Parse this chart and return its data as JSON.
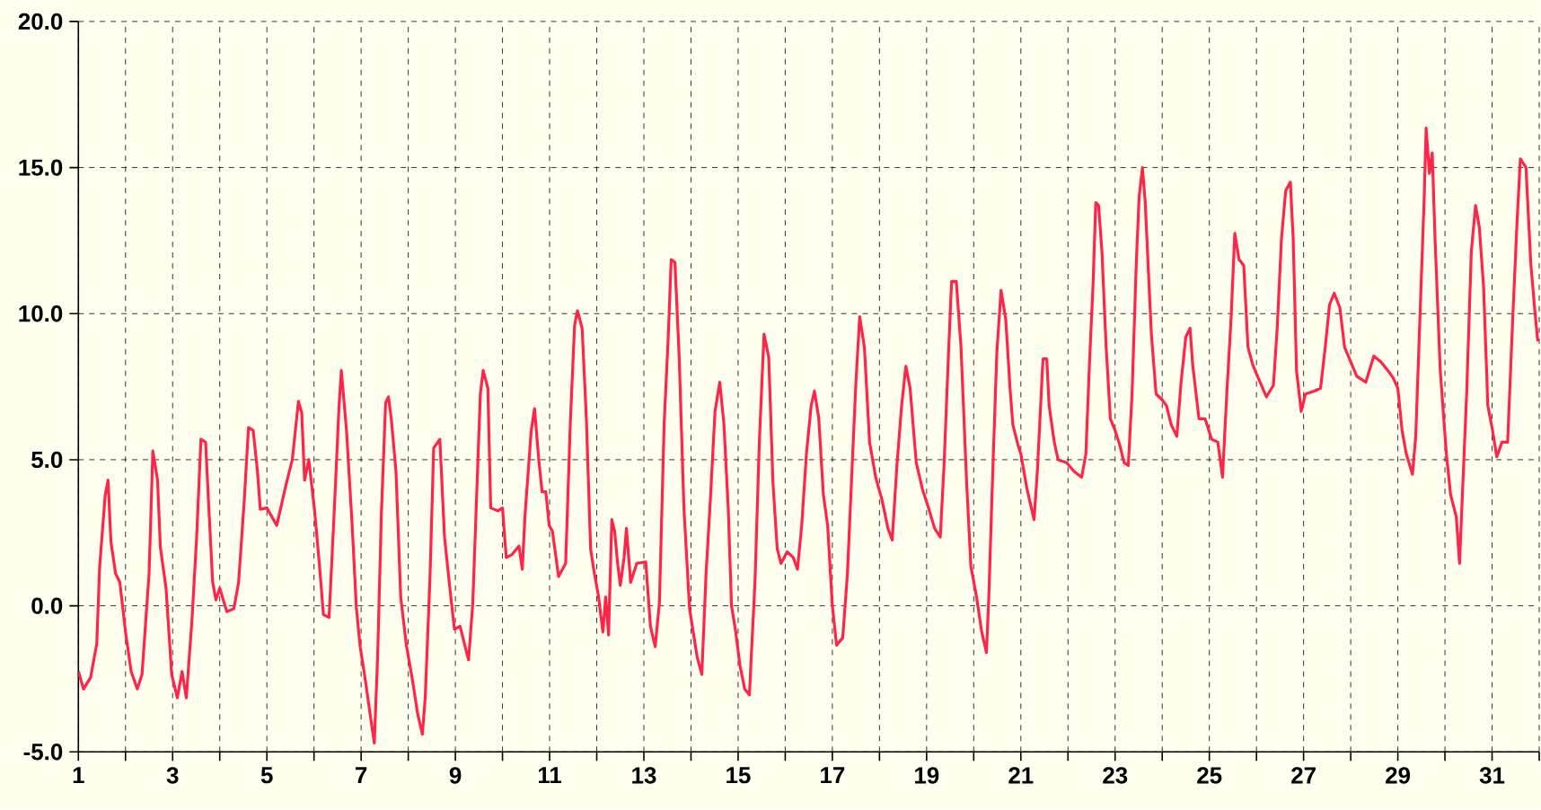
{
  "chart_data": {
    "type": "line",
    "xlim": [
      1,
      32
    ],
    "ylim": [
      -5,
      20
    ],
    "xticks": [
      1,
      {
        "value": 2,
        "label": null
      },
      3,
      {
        "value": 4,
        "label": null
      },
      5,
      {
        "value": 6,
        "label": null
      },
      7,
      {
        "value": 8,
        "label": null
      },
      9,
      {
        "value": 10,
        "label": null
      },
      11,
      {
        "value": 12,
        "label": null
      },
      13,
      {
        "value": 14,
        "label": null
      },
      15,
      {
        "value": 16,
        "label": null
      },
      17,
      {
        "value": 18,
        "label": null
      },
      19,
      {
        "value": 20,
        "label": null
      },
      21,
      {
        "value": 22,
        "label": null
      },
      23,
      {
        "value": 24,
        "label": null
      },
      25,
      {
        "value": 26,
        "label": null
      },
      27,
      {
        "value": 28,
        "label": null
      },
      29,
      {
        "value": 30,
        "label": null
      },
      31,
      {
        "value": 32,
        "label": null
      }
    ],
    "yticks": [
      {
        "value": -5,
        "label": "-5.0"
      },
      {
        "value": 0,
        "label": "0.0"
      },
      {
        "value": 5,
        "label": "5.0"
      },
      {
        "value": 10,
        "label": "10.0"
      },
      {
        "value": 15,
        "label": "15.0"
      },
      {
        "value": 20,
        "label": "20.0"
      }
    ],
    "grid": true,
    "line_style": "solid",
    "series": [
      {
        "color": "#ff2448",
        "x": [
          1.0,
          1.11,
          1.26,
          1.39,
          1.45,
          1.57,
          1.63,
          1.69,
          1.79,
          1.88,
          2.0,
          2.12,
          2.25,
          2.35,
          2.5,
          2.58,
          2.68,
          2.74,
          2.86,
          2.98,
          3.1,
          3.2,
          3.29,
          3.41,
          3.51,
          3.6,
          3.7,
          3.76,
          3.85,
          3.92,
          4.0,
          4.15,
          4.3,
          4.4,
          4.52,
          4.61,
          4.71,
          4.8,
          4.86,
          5.0,
          5.21,
          5.4,
          5.54,
          5.67,
          5.74,
          5.8,
          5.89,
          6.01,
          6.11,
          6.2,
          6.32,
          6.44,
          6.53,
          6.58,
          6.69,
          6.81,
          6.9,
          6.98,
          7.09,
          7.19,
          7.28,
          7.35,
          7.43,
          7.52,
          7.58,
          7.64,
          7.74,
          7.84,
          7.96,
          8.09,
          8.2,
          8.3,
          8.36,
          8.46,
          8.54,
          8.67,
          8.77,
          8.89,
          8.98,
          9.1,
          9.2,
          9.28,
          9.37,
          9.44,
          9.53,
          9.59,
          9.69,
          9.75,
          9.9,
          10.0,
          10.08,
          10.2,
          10.35,
          10.42,
          10.48,
          10.61,
          10.68,
          10.77,
          10.84,
          10.92,
          10.99,
          11.06,
          11.19,
          11.34,
          11.44,
          11.53,
          11.59,
          11.69,
          11.78,
          11.87,
          11.95,
          12.04,
          12.13,
          12.19,
          12.25,
          12.32,
          12.38,
          12.44,
          12.5,
          12.58,
          12.63,
          12.72,
          12.85,
          13.04,
          13.14,
          13.24,
          13.33,
          13.43,
          13.52,
          13.58,
          13.66,
          13.75,
          13.85,
          13.97,
          14.13,
          14.23,
          14.32,
          14.41,
          14.51,
          14.61,
          14.7,
          14.79,
          14.86,
          14.95,
          15.04,
          15.14,
          15.24,
          15.36,
          15.45,
          15.55,
          15.65,
          15.74,
          15.83,
          15.91,
          16.04,
          16.17,
          16.26,
          16.35,
          16.45,
          16.55,
          16.62,
          16.71,
          16.81,
          16.9,
          17.0,
          17.09,
          17.22,
          17.32,
          17.41,
          17.5,
          17.58,
          17.68,
          17.79,
          17.92,
          18.05,
          18.18,
          18.27,
          18.37,
          18.47,
          18.56,
          18.65,
          18.78,
          18.91,
          19.04,
          19.17,
          19.29,
          19.37,
          19.46,
          19.53,
          19.63,
          19.73,
          19.85,
          19.94,
          20.06,
          20.17,
          20.27,
          20.32,
          20.4,
          20.49,
          20.58,
          20.68,
          20.77,
          20.83,
          20.94,
          21.0,
          21.13,
          21.28,
          21.35,
          21.42,
          21.47,
          21.55,
          21.6,
          21.71,
          21.79,
          21.97,
          22.13,
          22.29,
          22.38,
          22.46,
          22.53,
          22.59,
          22.65,
          22.72,
          22.81,
          22.9,
          23.0,
          23.1,
          23.19,
          23.28,
          23.36,
          23.45,
          23.51,
          23.58,
          23.64,
          23.71,
          23.77,
          23.87,
          24.0,
          24.09,
          24.19,
          24.31,
          24.4,
          24.5,
          24.59,
          24.65,
          24.78,
          24.91,
          25.05,
          25.18,
          25.28,
          25.37,
          25.46,
          25.54,
          25.63,
          25.73,
          25.82,
          25.92,
          26.05,
          26.21,
          26.36,
          26.44,
          26.53,
          26.62,
          26.72,
          26.78,
          26.85,
          26.95,
          27.04,
          27.23,
          27.36,
          27.46,
          27.55,
          27.65,
          27.77,
          27.87,
          28.0,
          28.13,
          28.32,
          28.49,
          28.64,
          28.79,
          28.9,
          29.0,
          29.09,
          29.18,
          29.31,
          29.38,
          29.47,
          29.56,
          29.6,
          29.67,
          29.73,
          29.79,
          29.9,
          30.03,
          30.12,
          30.24,
          30.31,
          30.37,
          30.46,
          30.56,
          30.65,
          30.73,
          30.82,
          30.91,
          31.01,
          31.1,
          31.21,
          31.33,
          31.44,
          31.53,
          31.6,
          31.72,
          31.82,
          31.91,
          31.97
        ],
        "values": [
          -2.25,
          -2.85,
          -2.45,
          -1.3,
          1.3,
          3.8,
          4.3,
          2.2,
          1.1,
          0.8,
          -0.9,
          -2.25,
          -2.85,
          -2.35,
          1.1,
          5.3,
          4.3,
          2.0,
          0.6,
          -2.35,
          -3.15,
          -2.25,
          -3.15,
          -0.5,
          2.35,
          5.7,
          5.6,
          3.6,
          0.8,
          0.2,
          0.6,
          -0.2,
          -0.1,
          0.8,
          3.6,
          6.1,
          6.0,
          4.6,
          3.3,
          3.35,
          2.75,
          4.1,
          5.0,
          7.0,
          6.6,
          4.3,
          5.0,
          3.3,
          1.5,
          -0.3,
          -0.4,
          3.6,
          6.8,
          8.05,
          6.0,
          2.75,
          -0.1,
          -1.4,
          -2.55,
          -3.7,
          -4.7,
          -1.75,
          3.15,
          6.95,
          7.15,
          6.4,
          4.6,
          0.3,
          -1.35,
          -2.55,
          -3.7,
          -4.4,
          -3.15,
          0.9,
          5.4,
          5.7,
          2.35,
          0.5,
          -0.8,
          -0.7,
          -1.35,
          -1.85,
          0.1,
          3.25,
          7.25,
          8.05,
          7.45,
          3.35,
          3.25,
          3.35,
          1.65,
          1.75,
          2.05,
          1.25,
          3.15,
          6.0,
          6.75,
          5.0,
          3.9,
          3.9,
          2.75,
          2.55,
          1.0,
          1.45,
          6.3,
          9.6,
          10.1,
          9.5,
          6.4,
          1.95,
          1.1,
          0.3,
          -0.9,
          0.3,
          -1.0,
          2.95,
          2.55,
          1.5,
          0.7,
          1.65,
          2.65,
          0.8,
          1.45,
          1.5,
          -0.7,
          -1.4,
          0.1,
          6.2,
          9.3,
          11.85,
          11.75,
          8.5,
          3.35,
          -0.1,
          -1.75,
          -2.35,
          1.1,
          3.6,
          6.65,
          7.65,
          6.2,
          3.35,
          0.0,
          -0.9,
          -2.05,
          -2.85,
          -3.05,
          0.9,
          5.6,
          9.3,
          8.5,
          4.2,
          1.95,
          1.45,
          1.85,
          1.65,
          1.25,
          2.75,
          5.2,
          6.85,
          7.35,
          6.45,
          3.8,
          2.75,
          0.0,
          -1.35,
          -1.1,
          1.1,
          4.4,
          7.65,
          9.9,
          8.85,
          5.6,
          4.4,
          3.65,
          2.65,
          2.25,
          4.8,
          6.85,
          8.2,
          7.45,
          4.9,
          4.0,
          3.35,
          2.65,
          2.35,
          4.8,
          8.45,
          11.1,
          11.1,
          8.85,
          4.2,
          1.35,
          0.3,
          -0.9,
          -1.6,
          0.3,
          4.4,
          8.65,
          10.8,
          9.8,
          7.45,
          6.2,
          5.5,
          5.2,
          4.0,
          2.95,
          4.6,
          6.85,
          8.45,
          8.45,
          6.85,
          5.6,
          5.0,
          4.9,
          4.6,
          4.4,
          5.2,
          8.45,
          10.9,
          13.8,
          13.7,
          12.15,
          8.85,
          6.4,
          6.0,
          5.5,
          4.9,
          4.8,
          7.25,
          11.75,
          14.0,
          15.0,
          13.8,
          11.35,
          9.3,
          7.25,
          7.05,
          6.85,
          6.2,
          5.8,
          7.65,
          9.2,
          9.5,
          8.2,
          6.4,
          6.4,
          5.7,
          5.6,
          4.4,
          7.25,
          9.8,
          12.75,
          11.85,
          11.65,
          8.85,
          8.25,
          7.75,
          7.15,
          7.55,
          9.5,
          12.55,
          14.2,
          14.5,
          12.55,
          8.05,
          6.65,
          7.25,
          7.35,
          7.45,
          8.85,
          10.3,
          10.7,
          10.2,
          8.85,
          8.35,
          7.85,
          7.65,
          8.55,
          8.35,
          8.05,
          7.8,
          7.45,
          6.0,
          5.2,
          4.5,
          5.8,
          9.9,
          14.0,
          16.35,
          14.8,
          15.5,
          12.55,
          8.05,
          5.2,
          3.8,
          3.05,
          1.45,
          3.8,
          7.25,
          12.15,
          13.7,
          12.95,
          10.9,
          6.85,
          6.0,
          5.1,
          5.6,
          5.6,
          9.9,
          13.15,
          15.3,
          15.0,
          11.75,
          10.05,
          9.05
        ]
      }
    ]
  }
}
